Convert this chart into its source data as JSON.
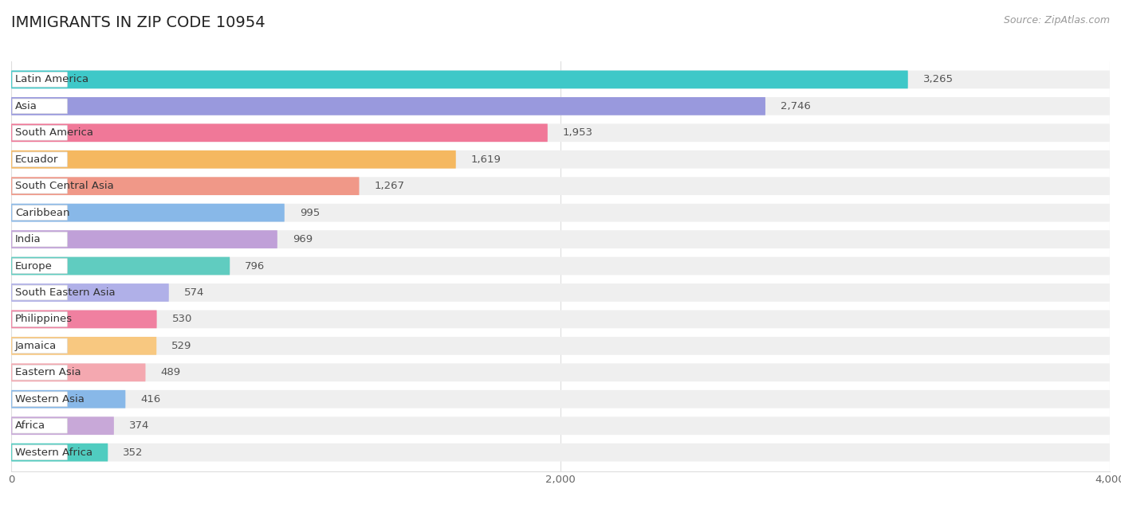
{
  "title": "IMMIGRANTS IN ZIP CODE 10954",
  "source": "Source: ZipAtlas.com",
  "categories": [
    "Latin America",
    "Asia",
    "South America",
    "Ecuador",
    "South Central Asia",
    "Caribbean",
    "India",
    "Europe",
    "South Eastern Asia",
    "Philippines",
    "Jamaica",
    "Eastern Asia",
    "Western Asia",
    "Africa",
    "Western Africa"
  ],
  "values": [
    3265,
    2746,
    1953,
    1619,
    1267,
    995,
    969,
    796,
    574,
    530,
    529,
    489,
    416,
    374,
    352
  ],
  "bar_colors": [
    "#3ec8c8",
    "#9999dd",
    "#f07898",
    "#f5b860",
    "#f09888",
    "#88b8e8",
    "#c0a0d8",
    "#60ccc0",
    "#b0b0e8",
    "#f080a0",
    "#f8c880",
    "#f4a8b0",
    "#88b8e8",
    "#c8a8d8",
    "#50ccc0"
  ],
  "xlim": [
    0,
    4000
  ],
  "xticks": [
    0,
    2000,
    4000
  ],
  "background_color": "#ffffff",
  "bar_bg_color": "#efefef",
  "label_bg_color": "#ffffff"
}
